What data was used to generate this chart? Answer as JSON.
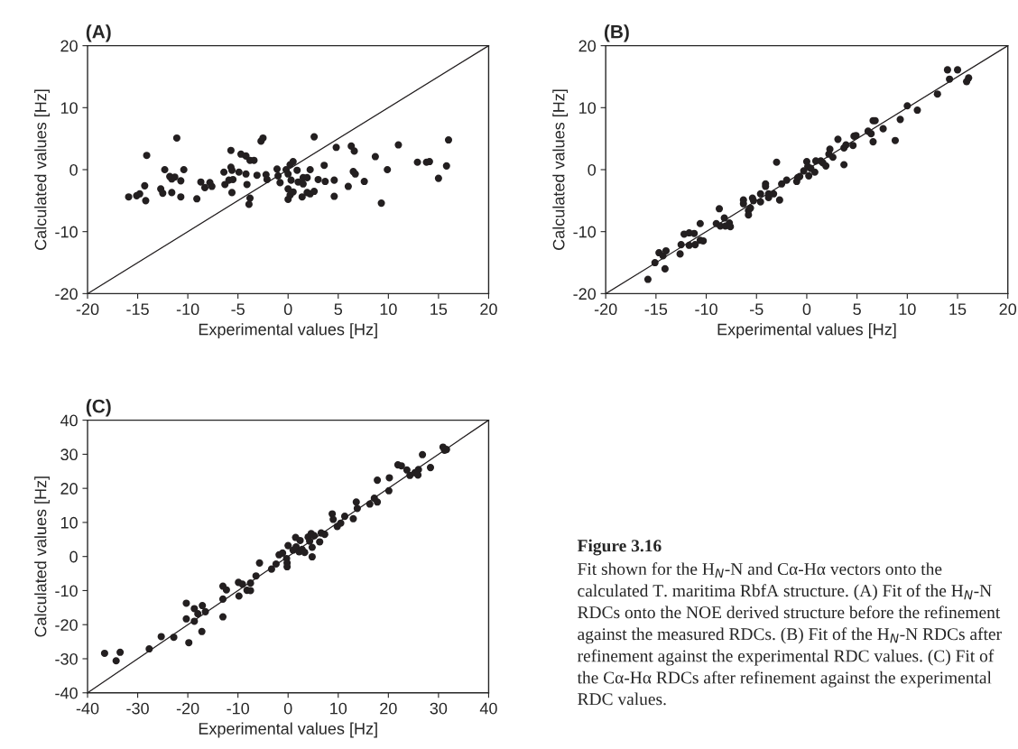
{
  "chart_data": [
    {
      "type": "scatter",
      "title": "(A)",
      "xlabel": "Experimental values [Hz]",
      "ylabel": "Calculated values [Hz]",
      "xlim": [
        -20,
        20
      ],
      "ylim": [
        -20,
        20
      ],
      "xticks": [
        -20,
        -15,
        -10,
        -5,
        0,
        5,
        10,
        15,
        20
      ],
      "yticks": [
        -20,
        -10,
        0,
        10,
        20
      ],
      "series": [
        {
          "marker": "circle",
          "color": "#231f20",
          "x": [
            -15.9,
            -15.1,
            -14.8,
            -14.2,
            -14.3,
            -14.1,
            -12.7,
            -12.5,
            -12.3,
            -11.8,
            -11.6,
            -11.3,
            -11.6,
            -11.1,
            -10.7,
            -10.7,
            -10.4,
            -9.1,
            -8.7,
            -8.3,
            -7.8,
            -7.6,
            -6.4,
            -6.3,
            -5.9,
            -5.7,
            -5.7,
            -5.6,
            -5.6,
            -5.5,
            -4.9,
            -4.7,
            -4.2,
            -4.2,
            -4.1,
            -3.8,
            -3.9,
            -3.8,
            -3.4,
            -3.1,
            -2.7,
            -2.5,
            -2.2,
            -2.1,
            -1.1,
            -1.0,
            -0.8,
            -0.2,
            0.0,
            0.2,
            0.5,
            0.3,
            0.0,
            0.2,
            0.0,
            0.5,
            0.9,
            1.0,
            1.5,
            1.5,
            1.9,
            1.4,
            1.9,
            2.2,
            2.6,
            2.6,
            2.2,
            3.0,
            3.6,
            3.7,
            4.6,
            4.6,
            4.8,
            6.0,
            6.3,
            6.6,
            6.5,
            6.7,
            7.6,
            8.7,
            9.3,
            9.9,
            11.0,
            12.9,
            13.8,
            14.1,
            15.0,
            15.8,
            16.0
          ],
          "values": [
            -4.4,
            -4.2,
            -3.9,
            -5.0,
            -2.6,
            2.3,
            -3.1,
            -3.8,
            0,
            -1.1,
            -1.5,
            -1.2,
            -3.7,
            5.1,
            -1.8,
            -4.4,
            0,
            -4.7,
            -2.0,
            -2.9,
            -2.1,
            -2.7,
            -0.4,
            -2.4,
            -1.7,
            3.1,
            0.4,
            -0.1,
            -3.7,
            -1.6,
            -0.4,
            2.5,
            2.2,
            -0.7,
            -2.4,
            -4.6,
            -5.6,
            1.5,
            1.5,
            -0.9,
            4.6,
            5.1,
            -0.8,
            -1.6,
            0.1,
            -1.0,
            -2.1,
            0,
            -0.7,
            0.8,
            1.3,
            -1.7,
            -3.1,
            -4.1,
            -4.8,
            -3.6,
            -0.1,
            -2.0,
            -1.3,
            -2.3,
            -1.3,
            -4.4,
            -3.7,
            -3.9,
            -3.5,
            5.3,
            0,
            -1.6,
            0.7,
            -1.9,
            -1.7,
            -4.3,
            3.6,
            -2.7,
            3.8,
            3.0,
            -0.3,
            -0.7,
            -1.9,
            2.1,
            -5.4,
            0,
            4.0,
            1.2,
            1.2,
            1.3,
            -1.4,
            0.6,
            4.8
          ]
        },
        {
          "type": "line",
          "color": "#231f20",
          "x": [
            -20,
            20
          ],
          "values": [
            -20,
            20
          ]
        }
      ]
    },
    {
      "type": "scatter",
      "title": "(B)",
      "xlabel": "Experimental values [Hz]",
      "ylabel": "Calculated values [Hz]",
      "xlim": [
        -20,
        20
      ],
      "ylim": [
        -20,
        20
      ],
      "xticks": [
        -20,
        -15,
        -10,
        -5,
        0,
        5,
        10,
        15,
        20
      ],
      "yticks": [
        -20,
        -10,
        0,
        10,
        20
      ],
      "series": [
        {
          "marker": "circle",
          "color": "#231f20",
          "x": [
            -15.8,
            -15.1,
            -14.7,
            -14.3,
            -14.0,
            -14.1,
            -12.6,
            -12.5,
            -12.2,
            -11.7,
            -11.7,
            -11.2,
            -11.1,
            -10.6,
            -10.6,
            -10.3,
            -9.0,
            -8.7,
            -8.6,
            -8.2,
            -8.1,
            -7.7,
            -7.6,
            -6.3,
            -6.3,
            -5.8,
            -5.8,
            -5.6,
            -5.4,
            -5.3,
            -4.6,
            -4.6,
            -4.1,
            -4.1,
            -3.8,
            -3.8,
            -3.3,
            -3.0,
            -2.7,
            -2.5,
            -2.0,
            -1.0,
            -0.9,
            -0.7,
            -0.3,
            0.0,
            0.1,
            0.2,
            0.4,
            0.8,
            0.9,
            1.4,
            1.6,
            1.9,
            2.3,
            2.2,
            2.6,
            3.1,
            3.7,
            3.7,
            3.9,
            4.6,
            4.7,
            4.9,
            6.1,
            6.4,
            6.6,
            6.6,
            6.8,
            7.6,
            8.8,
            9.3,
            10.0,
            11.0,
            13.0,
            14.0,
            14.2,
            15.0,
            15.9,
            16.1
          ],
          "values": [
            -17.7,
            -15.0,
            -13.4,
            -13.9,
            -13.1,
            -16.0,
            -13.6,
            -12.1,
            -10.4,
            -10.2,
            -12.2,
            -10.3,
            -12.1,
            -8.7,
            -11.4,
            -11.5,
            -8.7,
            -6.3,
            -9.1,
            -7.8,
            -9.1,
            -8.6,
            -9.2,
            -4.9,
            -5.5,
            -6.6,
            -7.3,
            -6.2,
            -4.6,
            -5.0,
            -5.2,
            -3.9,
            -2.3,
            -2.7,
            -3.9,
            -4.5,
            -3.9,
            1.2,
            -4.9,
            -2.3,
            -1.7,
            -1.9,
            -1.3,
            -1.1,
            -0.2,
            1.3,
            0.5,
            -1.0,
            0.2,
            -0.4,
            1.4,
            1.4,
            1.1,
            0.6,
            3.3,
            2.5,
            2.0,
            4.9,
            0.8,
            3.5,
            4.0,
            3.9,
            5.4,
            5.5,
            6.2,
            5.8,
            4.5,
            7.9,
            7.9,
            6.6,
            4.7,
            8.1,
            10.3,
            9.6,
            12.2,
            16.1,
            14.6,
            16.1,
            14.2,
            14.8
          ]
        },
        {
          "type": "line",
          "color": "#231f20",
          "x": [
            -20,
            20
          ],
          "values": [
            -20,
            20
          ]
        }
      ]
    },
    {
      "type": "scatter",
      "title": "(C)",
      "xlabel": "Experimental values [Hz]",
      "ylabel": "Calculated values [Hz]",
      "xlim": [
        -40,
        40
      ],
      "ylim": [
        -40,
        40
      ],
      "xticks": [
        -40,
        -30,
        -20,
        -10,
        0,
        10,
        20,
        30,
        40
      ],
      "yticks": [
        -40,
        -30,
        -20,
        -10,
        0,
        10,
        20,
        30,
        40
      ],
      "series": [
        {
          "marker": "circle",
          "color": "#231f20",
          "x": [
            -36.6,
            -34.3,
            -33.5,
            -27.7,
            -25.3,
            -22.8,
            -19.8,
            -17.2,
            -20.3,
            -18.7,
            -13.0,
            -20.3,
            -18.7,
            -18.0,
            -17.1,
            -16.5,
            -13.0,
            -12.3,
            -13.0,
            -9.8,
            -9.9,
            -9.1,
            -8.2,
            -7.5,
            -7.5,
            -6.4,
            -5.7,
            -3.3,
            -2.4,
            -1.8,
            -1.1,
            -0.3,
            -0.2,
            -0.2,
            0.0,
            1.0,
            1.5,
            1.6,
            2.2,
            2.4,
            2.8,
            3.3,
            4.0,
            4.3,
            4.6,
            4.8,
            4.8,
            5.2,
            6.3,
            6.6,
            7.3,
            8.8,
            9.0,
            9.8,
            10.5,
            11.3,
            13.0,
            13.6,
            13.8,
            16.3,
            17.2,
            17.8,
            17.8,
            20.1,
            20.2,
            21.9,
            22.6,
            23.7,
            24.3,
            25.3,
            26.0,
            25.9,
            26.8,
            28.4,
            30.9,
            31.6,
            31.2
          ],
          "values": [
            -28.4,
            -30.6,
            -28.1,
            -27.1,
            -23.5,
            -23.7,
            -25.3,
            -22.0,
            -18.3,
            -19.0,
            -17.7,
            -13.7,
            -15.3,
            -16.8,
            -14.4,
            -16.2,
            -8.7,
            -9.8,
            -12.5,
            -11.6,
            -7.6,
            -8.1,
            -9.9,
            -10.0,
            -7.8,
            -5.7,
            -1.9,
            -3.7,
            -2.2,
            0.5,
            1.0,
            -0.6,
            -1.9,
            -3.0,
            3.2,
            1.9,
            5.6,
            2.8,
            1.4,
            4.7,
            2.1,
            1.2,
            5.7,
            4.5,
            6.7,
            2.7,
            -0.1,
            6.1,
            4.3,
            6.9,
            6.5,
            12.5,
            10.9,
            8.8,
            9.8,
            11.8,
            11.1,
            16.0,
            14.1,
            15.4,
            17.1,
            16.0,
            22.4,
            19.3,
            23.1,
            26.9,
            26.6,
            25.4,
            23.8,
            24.6,
            25.5,
            23.9,
            29.9,
            26.1,
            32.1,
            31.4,
            31.2
          ]
        },
        {
          "type": "line",
          "color": "#231f20",
          "x": [
            -40,
            40
          ],
          "values": [
            -40,
            40
          ]
        }
      ]
    },
    {
      "type": "other",
      "title": "Figure 3.16",
      "annotations": [
        "Fit shown for the H$_{N}$-N and Cα-Hα vectors onto the calculated T. maritima RbfA structure. (A) Fit of the H$_{N}$-N RDCs onto the NOE derived structure before the refinement against the measured RDCs. (B) Fit of the H$_{N}$-N RDCs after refinement against the experimental RDC values. (C) Fit of the Cα-Hα RDCs after refinement against the experimental RDC values."
      ]
    }
  ]
}
